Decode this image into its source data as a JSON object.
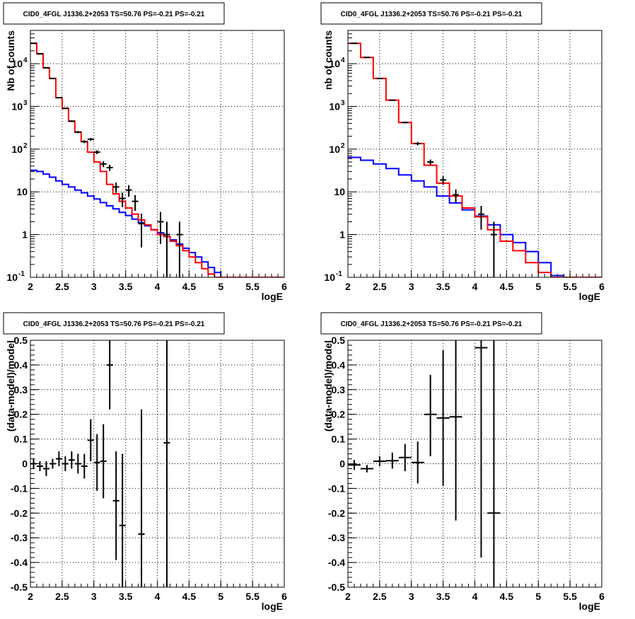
{
  "colors": {
    "data": "#000000",
    "total_model": "#ff0000",
    "background_model": "#0000ff",
    "grid": "#000000"
  },
  "chart_data": [
    {
      "id": "counts-left",
      "type": "line",
      "title": "CID0_4FGL J1336.2+2053 TS=50.76 PS=-0.21 PS=-0.21",
      "xlabel": "logE",
      "ylabel": "Nb of counts",
      "xlim": [
        2,
        6
      ],
      "ylim": [
        0.1,
        60000
      ],
      "yscale": "log",
      "grid": true,
      "x_ticks": [
        "2",
        "2.5",
        "3",
        "3.5",
        "4",
        "4.5",
        "5",
        "5.5",
        "6"
      ],
      "y_ticks": [
        {
          "v": 0.1,
          "label": "10",
          "exp": "-1"
        },
        {
          "v": 1,
          "label": "1",
          "exp": ""
        },
        {
          "v": 10,
          "label": "10",
          "exp": ""
        },
        {
          "v": 100,
          "label": "10",
          "exp": "2"
        },
        {
          "v": 1000,
          "label": "10",
          "exp": "3"
        },
        {
          "v": 10000,
          "label": "10",
          "exp": "4"
        }
      ],
      "bin_edges": [
        2.0,
        2.1,
        2.2,
        2.3,
        2.4,
        2.5,
        2.6,
        2.7,
        2.8,
        2.9,
        3.0,
        3.1,
        3.2,
        3.3,
        3.4,
        3.5,
        3.6,
        3.7,
        3.8,
        3.9,
        4.0,
        4.1,
        4.2,
        4.3,
        4.4,
        4.5,
        4.6,
        4.7,
        4.8,
        4.9,
        5.0,
        5.1,
        5.2,
        5.3,
        5.4,
        5.5,
        5.6,
        5.7,
        5.8,
        5.9,
        6.0
      ],
      "series": [
        {
          "role": "total_model",
          "values": [
            30000,
            17000,
            8000,
            4500,
            1600,
            900,
            450,
            250,
            150,
            85,
            50,
            30,
            15,
            9,
            6,
            4.2,
            3,
            2.2,
            1.7,
            1.3,
            1.0,
            0.9,
            0.7,
            0.55,
            0.42,
            0.3,
            0.22,
            0.16,
            0.12,
            0.1,
            0.1,
            0.1,
            0.1,
            0.1,
            0.1,
            0.1,
            0.1,
            0.1,
            0.1,
            0.1
          ]
        },
        {
          "role": "background_model",
          "values": [
            32,
            30,
            26,
            22,
            18,
            15,
            13,
            11,
            9.5,
            8,
            6.8,
            5.6,
            4.7,
            4.0,
            3.3,
            2.8,
            2.3,
            1.9,
            1.6,
            1.3,
            1.1,
            0.9,
            0.75,
            0.6,
            0.48,
            0.38,
            0.3,
            0.23,
            0.17,
            0.13,
            0.1,
            0.1,
            0.1,
            0.1,
            0.1,
            0.1,
            0.1,
            0.1,
            0.1,
            0.1
          ]
        }
      ],
      "points": [
        {
          "x": 2.05,
          "y": 30000,
          "lo": 29500,
          "hi": 30500
        },
        {
          "x": 2.15,
          "y": 17000,
          "lo": 16700,
          "hi": 17300
        },
        {
          "x": 2.25,
          "y": 8000,
          "lo": 7800,
          "hi": 8200
        },
        {
          "x": 2.35,
          "y": 4500,
          "lo": 4400,
          "hi": 4600
        },
        {
          "x": 2.45,
          "y": 1600,
          "lo": 1560,
          "hi": 1640
        },
        {
          "x": 2.55,
          "y": 900,
          "lo": 870,
          "hi": 930
        },
        {
          "x": 2.65,
          "y": 450,
          "lo": 430,
          "hi": 470
        },
        {
          "x": 2.75,
          "y": 250,
          "lo": 235,
          "hi": 265
        },
        {
          "x": 2.85,
          "y": 150,
          "lo": 138,
          "hi": 162
        },
        {
          "x": 2.95,
          "y": 170,
          "lo": 157,
          "hi": 183
        },
        {
          "x": 3.05,
          "y": 85,
          "lo": 76,
          "hi": 94
        },
        {
          "x": 3.15,
          "y": 45,
          "lo": 38,
          "hi": 52
        },
        {
          "x": 3.25,
          "y": 37,
          "lo": 31,
          "hi": 43
        },
        {
          "x": 3.35,
          "y": 13,
          "lo": 9.5,
          "hi": 16.5
        },
        {
          "x": 3.45,
          "y": 7,
          "lo": 4.4,
          "hi": 9.6
        },
        {
          "x": 3.55,
          "y": 11,
          "lo": 7.7,
          "hi": 14.3
        },
        {
          "x": 3.65,
          "y": 6,
          "lo": 3.6,
          "hi": 8.4
        },
        {
          "x": 3.75,
          "y": 1.8,
          "lo": 0.5,
          "hi": 3.1
        },
        {
          "x": 4.05,
          "y": 2,
          "lo": 0.6,
          "hi": 3.4
        },
        {
          "x": 4.15,
          "y": 1,
          "lo": 0.1,
          "hi": 2.0
        },
        {
          "x": 4.35,
          "y": 1,
          "lo": 0.1,
          "hi": 2.0
        }
      ]
    },
    {
      "id": "counts-right",
      "type": "line",
      "title": "CID0_4FGL J1336.2+2053 TS=50.76 PS=-0.21 PS=-0.21",
      "xlabel": "logE",
      "ylabel": "nb of counts",
      "xlim": [
        2,
        6
      ],
      "ylim": [
        0.1,
        60000
      ],
      "yscale": "log",
      "grid": true,
      "x_ticks": [
        "2",
        "2.5",
        "3",
        "3.5",
        "4",
        "4.5",
        "5",
        "5.5",
        "6"
      ],
      "y_ticks": [
        {
          "v": 0.1,
          "label": "10",
          "exp": "-1"
        },
        {
          "v": 1,
          "label": "1",
          "exp": ""
        },
        {
          "v": 10,
          "label": "10",
          "exp": ""
        },
        {
          "v": 100,
          "label": "10",
          "exp": "2"
        },
        {
          "v": 1000,
          "label": "10",
          "exp": "3"
        },
        {
          "v": 10000,
          "label": "10",
          "exp": "4"
        }
      ],
      "bin_edges": [
        2.0,
        2.2,
        2.4,
        2.6,
        2.8,
        3.0,
        3.2,
        3.4,
        3.6,
        3.8,
        4.0,
        4.2,
        4.4,
        4.6,
        4.8,
        5.0,
        5.2,
        5.4,
        5.6,
        5.8,
        6.0
      ],
      "series": [
        {
          "role": "total_model",
          "values": [
            30000,
            14000,
            4500,
            1400,
            420,
            135,
            42,
            16,
            8,
            4.2,
            2.6,
            1.3,
            0.7,
            0.42,
            0.22,
            0.13,
            0.1,
            0.1,
            0.1,
            0.1
          ]
        },
        {
          "role": "background_model",
          "values": [
            64,
            55,
            45,
            35,
            25,
            18,
            13,
            8,
            5.5,
            3.8,
            2.7,
            1.7,
            1.0,
            0.65,
            0.4,
            0.22,
            0.11,
            0.1,
            0.1,
            0.1
          ]
        }
      ],
      "points": [
        {
          "x": 2.1,
          "y": 30000,
          "lo": 29600,
          "hi": 30400
        },
        {
          "x": 2.3,
          "y": 14000,
          "lo": 13800,
          "hi": 14200
        },
        {
          "x": 2.5,
          "y": 4500,
          "lo": 4400,
          "hi": 4600
        },
        {
          "x": 2.7,
          "y": 1400,
          "lo": 1360,
          "hi": 1440
        },
        {
          "x": 2.9,
          "y": 420,
          "lo": 400,
          "hi": 440
        },
        {
          "x": 3.1,
          "y": 135,
          "lo": 123,
          "hi": 147
        },
        {
          "x": 3.3,
          "y": 50,
          "lo": 43,
          "hi": 57
        },
        {
          "x": 3.5,
          "y": 19,
          "lo": 14.6,
          "hi": 23.4
        },
        {
          "x": 3.7,
          "y": 8.5,
          "lo": 5.6,
          "hi": 11.4
        },
        {
          "x": 4.1,
          "y": 3,
          "lo": 1.3,
          "hi": 4.7
        },
        {
          "x": 4.3,
          "y": 1,
          "lo": 0.1,
          "hi": 2.0
        }
      ]
    },
    {
      "id": "residuals-left",
      "type": "scatter",
      "title": "CID0_4FGL J1336.2+2053 TS=50.76 PS=-0.21 PS=-0.21",
      "xlabel": "logE",
      "ylabel": "(data-model)/model",
      "xlim": [
        2,
        6
      ],
      "ylim": [
        -0.5,
        0.5
      ],
      "grid": true,
      "x_ticks": [
        "2",
        "2.5",
        "3",
        "3.5",
        "4",
        "4.5",
        "5",
        "5.5",
        "6"
      ],
      "y_ticks": [
        "-0.5",
        "-0.4",
        "-0.3",
        "-0.2",
        "-0.1",
        "0",
        "0.1",
        "0.2",
        "0.3",
        "0.4",
        "0.5"
      ],
      "points": [
        {
          "x": 2.05,
          "y": 0.0,
          "lo": -0.02,
          "hi": 0.02,
          "hw": 0.05
        },
        {
          "x": 2.15,
          "y": -0.01,
          "lo": -0.03,
          "hi": 0.01,
          "hw": 0.05
        },
        {
          "x": 2.25,
          "y": -0.02,
          "lo": -0.05,
          "hi": 0.01,
          "hw": 0.05
        },
        {
          "x": 2.35,
          "y": 0.0,
          "lo": -0.02,
          "hi": 0.02,
          "hw": 0.05
        },
        {
          "x": 2.45,
          "y": 0.02,
          "lo": -0.01,
          "hi": 0.05,
          "hw": 0.05
        },
        {
          "x": 2.55,
          "y": 0.0,
          "lo": -0.03,
          "hi": 0.03,
          "hw": 0.05
        },
        {
          "x": 2.65,
          "y": 0.015,
          "lo": -0.02,
          "hi": 0.05,
          "hw": 0.05
        },
        {
          "x": 2.75,
          "y": 0.0,
          "lo": -0.04,
          "hi": 0.04,
          "hw": 0.05
        },
        {
          "x": 2.85,
          "y": -0.01,
          "lo": -0.06,
          "hi": 0.04,
          "hw": 0.05
        },
        {
          "x": 2.95,
          "y": 0.095,
          "lo": 0.01,
          "hi": 0.18,
          "hw": 0.05
        },
        {
          "x": 3.05,
          "y": 0.005,
          "lo": -0.11,
          "hi": 0.12,
          "hw": 0.05
        },
        {
          "x": 3.15,
          "y": 0.01,
          "lo": -0.14,
          "hi": 0.16,
          "hw": 0.05
        },
        {
          "x": 3.25,
          "y": 0.4,
          "lo": 0.22,
          "hi": 0.55,
          "hw": 0.05
        },
        {
          "x": 3.35,
          "y": -0.15,
          "lo": -0.39,
          "hi": 0.05,
          "hw": 0.05
        },
        {
          "x": 3.45,
          "y": -0.25,
          "lo": -0.55,
          "hi": 0.04,
          "hw": 0.05
        },
        {
          "x": 3.75,
          "y": -0.285,
          "lo": -0.56,
          "hi": 0.22,
          "hw": 0.05
        },
        {
          "x": 4.15,
          "y": 0.085,
          "lo": -0.55,
          "hi": 0.55,
          "hw": 0.05
        }
      ]
    },
    {
      "id": "residuals-right",
      "type": "scatter",
      "title": "CID0_4FGL J1336.2+2053 TS=50.76 PS=-0.21 PS=-0.21",
      "xlabel": "logE",
      "ylabel": "(data-model)/model",
      "xlim": [
        2,
        6
      ],
      "ylim": [
        -0.5,
        0.5
      ],
      "grid": true,
      "x_ticks": [
        "2",
        "2.5",
        "3",
        "3.5",
        "4",
        "4.5",
        "5",
        "5.5",
        "6"
      ],
      "y_ticks": [
        "-0.5",
        "-0.4",
        "-0.3",
        "-0.2",
        "-0.1",
        "0",
        "0.1",
        "0.2",
        "0.3",
        "0.4",
        "0.5"
      ],
      "points": [
        {
          "x": 2.1,
          "y": -0.005,
          "lo": -0.025,
          "hi": 0.015,
          "hw": 0.1
        },
        {
          "x": 2.3,
          "y": -0.02,
          "lo": -0.035,
          "hi": -0.005,
          "hw": 0.1
        },
        {
          "x": 2.5,
          "y": 0.01,
          "lo": -0.01,
          "hi": 0.03,
          "hw": 0.1
        },
        {
          "x": 2.7,
          "y": 0.012,
          "lo": -0.02,
          "hi": 0.045,
          "hw": 0.1
        },
        {
          "x": 2.9,
          "y": 0.025,
          "lo": -0.03,
          "hi": 0.08,
          "hw": 0.1
        },
        {
          "x": 3.1,
          "y": 0.005,
          "lo": -0.08,
          "hi": 0.09,
          "hw": 0.1
        },
        {
          "x": 3.3,
          "y": 0.2,
          "lo": 0.03,
          "hi": 0.36,
          "hw": 0.1
        },
        {
          "x": 3.5,
          "y": 0.185,
          "lo": -0.09,
          "hi": 0.46,
          "hw": 0.1
        },
        {
          "x": 3.7,
          "y": 0.19,
          "lo": -0.23,
          "hi": 0.55,
          "hw": 0.1
        },
        {
          "x": 4.1,
          "y": 0.47,
          "lo": -0.38,
          "hi": 0.55,
          "hw": 0.1
        },
        {
          "x": 4.3,
          "y": -0.2,
          "lo": -0.55,
          "hi": 0.55,
          "hw": 0.1
        }
      ]
    }
  ]
}
